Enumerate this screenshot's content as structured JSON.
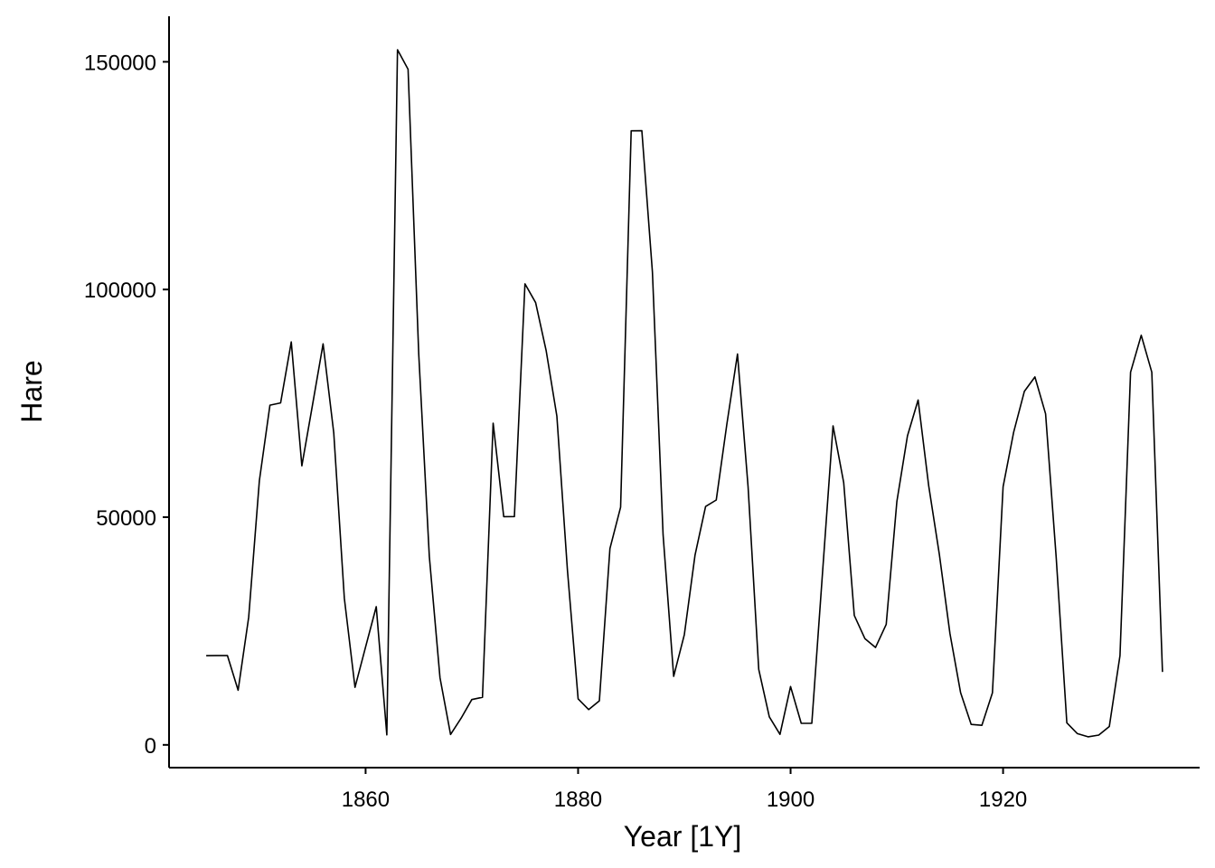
{
  "chart_data": {
    "type": "line",
    "xlabel": "Year [1Y]",
    "ylabel": "Hare",
    "xlim": [
      1841.5,
      1938.5
    ],
    "ylim": [
      -5000,
      160000
    ],
    "x_ticks": [
      1860,
      1880,
      1900,
      1920
    ],
    "x_tick_labels": [
      "1860",
      "1880",
      "1900",
      "1920"
    ],
    "y_ticks": [
      0,
      50000,
      100000,
      150000
    ],
    "y_tick_labels": [
      "0",
      "50000",
      "100000",
      "150000"
    ],
    "grid": false,
    "legend": "none",
    "line_color": "#000000",
    "series": [
      {
        "x": [
          1845,
          1846,
          1847,
          1848,
          1849,
          1850,
          1851,
          1852,
          1853,
          1854,
          1855,
          1856,
          1857,
          1858,
          1859,
          1860,
          1861,
          1862,
          1863,
          1864,
          1865,
          1866,
          1867,
          1868,
          1869,
          1870,
          1871,
          1872,
          1873,
          1874,
          1875,
          1876,
          1877,
          1878,
          1879,
          1880,
          1881,
          1882,
          1883,
          1884,
          1885,
          1886,
          1887,
          1888,
          1889,
          1890,
          1891,
          1892,
          1893,
          1894,
          1895,
          1896,
          1897,
          1898,
          1899,
          1900,
          1901,
          1902,
          1903,
          1904,
          1905,
          1906,
          1907,
          1908,
          1909,
          1910,
          1911,
          1912,
          1913,
          1914,
          1915,
          1916,
          1917,
          1918,
          1919,
          1920,
          1921,
          1922,
          1923,
          1924,
          1925,
          1926,
          1927,
          1928,
          1929,
          1930,
          1931,
          1932,
          1933,
          1934,
          1935
        ],
        "values": [
          19580,
          19600,
          19610,
          11990,
          28040,
          58000,
          74600,
          75090,
          88480,
          61280,
          74670,
          88060,
          68510,
          32190,
          12640,
          21490,
          30350,
          2180,
          152650,
          148360,
          85810,
          41410,
          14750,
          2280,
          5910,
          9950,
          10440,
          70640,
          50120,
          50130,
          101250,
          97120,
          86510,
          72170,
          38320,
          10110,
          7740,
          9670,
          43120,
          52210,
          134850,
          134860,
          103790,
          46100,
          15030,
          24200,
          41650,
          52340,
          53780,
          70400,
          85810,
          56690,
          16590,
          6160,
          2300,
          12820,
          4720,
          4730,
          37650,
          70060,
          57560,
          28410,
          23320,
          21380,
          26460,
          53450,
          67850,
          75740,
          56890,
          41810,
          24460,
          11460,
          4490,
          4290,
          11420,
          56690,
          68680,
          77610,
          80800,
          72700,
          41250,
          4850,
          2470,
          1780,
          2140,
          4040,
          19610,
          81830,
          89950,
          81830,
          16000
        ]
      }
    ]
  }
}
